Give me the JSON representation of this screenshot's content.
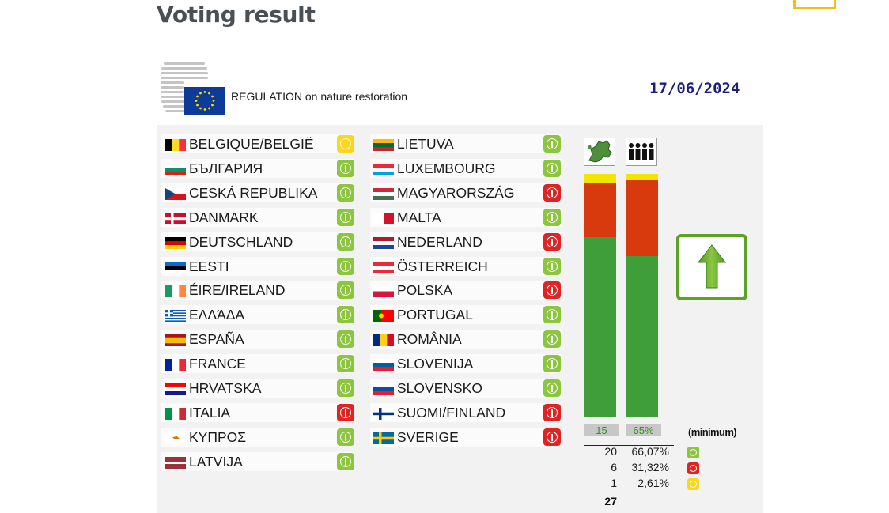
{
  "page": {
    "title": "Voting result"
  },
  "document": {
    "title": "REGULATION on nature restoration",
    "date": "17/06/2024"
  },
  "columns": [
    [
      {
        "name": "BELGIQUE/BELGIË",
        "vote": "abstain",
        "flag": "be"
      },
      {
        "name": "БЪЛГАРИЯ",
        "vote": "yes",
        "flag": "bg"
      },
      {
        "name": "CESKÁ REPUBLIKA",
        "vote": "yes",
        "flag": "cz"
      },
      {
        "name": "DANMARK",
        "vote": "yes",
        "flag": "dk"
      },
      {
        "name": "DEUTSCHLAND",
        "vote": "yes",
        "flag": "de"
      },
      {
        "name": "EESTI",
        "vote": "yes",
        "flag": "ee"
      },
      {
        "name": "ÉIRE/IRELAND",
        "vote": "yes",
        "flag": "ie"
      },
      {
        "name": "ΕΛΛΆΔΑ",
        "vote": "yes",
        "flag": "gr"
      },
      {
        "name": "ESPAÑA",
        "vote": "yes",
        "flag": "es"
      },
      {
        "name": "FRANCE",
        "vote": "yes",
        "flag": "fr"
      },
      {
        "name": "HRVATSKA",
        "vote": "yes",
        "flag": "hr"
      },
      {
        "name": "ITALIA",
        "vote": "no",
        "flag": "it"
      },
      {
        "name": "ΚΥΠΡΟΣ",
        "vote": "yes",
        "flag": "cy"
      },
      {
        "name": "LATVIJA",
        "vote": "yes",
        "flag": "lv"
      }
    ],
    [
      {
        "name": "LIETUVA",
        "vote": "yes",
        "flag": "lt"
      },
      {
        "name": "LUXEMBOURG",
        "vote": "yes",
        "flag": "lu"
      },
      {
        "name": "MAGYARORSZÁG",
        "vote": "no",
        "flag": "hu"
      },
      {
        "name": "MALTA",
        "vote": "yes",
        "flag": "mt"
      },
      {
        "name": "NEDERLAND",
        "vote": "no",
        "flag": "nl"
      },
      {
        "name": "ÖSTERREICH",
        "vote": "yes",
        "flag": "at"
      },
      {
        "name": "POLSKA",
        "vote": "no",
        "flag": "pl"
      },
      {
        "name": "PORTUGAL",
        "vote": "yes",
        "flag": "pt"
      },
      {
        "name": "ROMÂNIA",
        "vote": "yes",
        "flag": "ro"
      },
      {
        "name": "SLOVENIJA",
        "vote": "yes",
        "flag": "si"
      },
      {
        "name": "SLOVENSKO",
        "vote": "yes",
        "flag": "sk"
      },
      {
        "name": "SUOMI/FINLAND",
        "vote": "no",
        "flag": "fi"
      },
      {
        "name": "SVERIGE",
        "vote": "no",
        "flag": "se"
      }
    ]
  ],
  "colors": {
    "yes": "#3f9e3a",
    "no": "#d8390d",
    "abstain": "#f2e600",
    "yes_icon": "#8cc63f",
    "no_icon": "#e02424",
    "abstain_icon": "#f9d71c"
  },
  "chart_data": {
    "type": "bar",
    "categories": [
      "member-states",
      "population"
    ],
    "icons": [
      "eu-map-icon",
      "population-icon"
    ],
    "series": [
      {
        "name": "yes",
        "values": [
          20,
          66.07
        ]
      },
      {
        "name": "no",
        "values": [
          6,
          31.32
        ]
      },
      {
        "name": "abstain",
        "values": [
          1,
          2.61
        ]
      }
    ],
    "thresholds": [
      "15",
      "65%"
    ],
    "threshold_note": "(minimum)",
    "totals": [
      27,
      100
    ]
  },
  "tally": [
    {
      "count": "20",
      "pct": "66,07%",
      "vote": "yes"
    },
    {
      "count": "6",
      "pct": "31,32%",
      "vote": "no"
    },
    {
      "count": "1",
      "pct": "2,61%",
      "vote": "abstain"
    }
  ],
  "tally_total": "27",
  "result": "adopted"
}
